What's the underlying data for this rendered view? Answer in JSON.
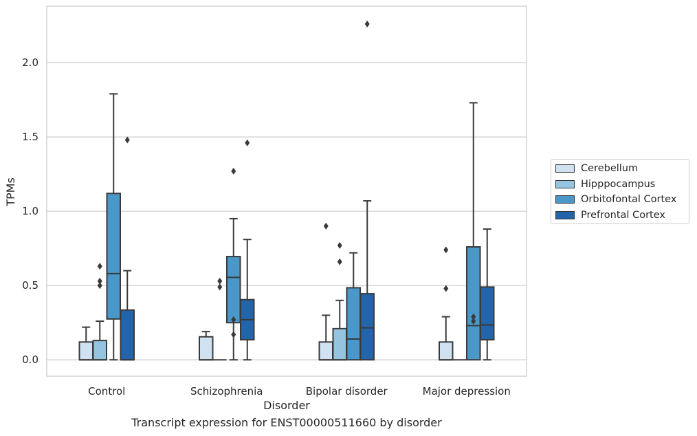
{
  "chart_data": {
    "type": "box",
    "title": "",
    "xlabel": "Disorder",
    "ylabel": "TPMs",
    "caption": "Transcript expression for ENST00000511660 by disorder",
    "ylim": [
      -0.11,
      2.38
    ],
    "yticks": [
      "0.0",
      "0.5",
      "1.0",
      "1.5",
      "2.0"
    ],
    "ytick_values": [
      0,
      0.5,
      1.0,
      1.5,
      2.0
    ],
    "grid": "horizontal",
    "legend_position": "right",
    "categories": [
      "Control",
      "Schizophrenia",
      "Bipolar disorder",
      "Major depression"
    ],
    "series": [
      {
        "name": "Cerebellum",
        "color": "#d0e1f2",
        "boxes": [
          {
            "whisker_low": 0,
            "q1": 0,
            "median": 0,
            "q3": 0.12,
            "whisker_high": 0.22,
            "fliers": []
          },
          {
            "whisker_low": 0,
            "q1": 0,
            "median": 0,
            "q3": 0.155,
            "whisker_high": 0.19,
            "fliers": []
          },
          {
            "whisker_low": 0,
            "q1": 0,
            "median": 0,
            "q3": 0.12,
            "whisker_high": 0.3,
            "fliers": [
              0.9
            ]
          },
          {
            "whisker_low": 0,
            "q1": 0,
            "median": 0,
            "q3": 0.12,
            "whisker_high": 0.29,
            "fliers": [
              0.74,
              0.48
            ]
          }
        ]
      },
      {
        "name": "Hipppocampus",
        "color": "#94c4df",
        "boxes": [
          {
            "whisker_low": 0,
            "q1": 0,
            "median": 0,
            "q3": 0.13,
            "whisker_high": 0.26,
            "fliers": [
              0.63,
              0.53,
              0.5
            ]
          },
          {
            "whisker_low": 0,
            "q1": 0,
            "median": 0,
            "q3": 0,
            "whisker_high": 0,
            "fliers": [
              0.53,
              0.49
            ]
          },
          {
            "whisker_low": 0,
            "q1": 0,
            "median": 0,
            "q3": 0.21,
            "whisker_high": 0.4,
            "fliers": [
              0.77,
              0.66
            ]
          },
          {
            "whisker_low": 0,
            "q1": 0,
            "median": 0,
            "q3": 0,
            "whisker_high": 0,
            "fliers": []
          }
        ]
      },
      {
        "name": "Orbitofontal Cortex",
        "color": "#4a98c9",
        "boxes": [
          {
            "whisker_low": 0,
            "q1": 0.275,
            "median": 0.58,
            "q3": 1.12,
            "whisker_high": 1.79,
            "fliers": []
          },
          {
            "whisker_low": 0,
            "q1": 0.25,
            "median": 0.555,
            "q3": 0.695,
            "whisker_high": 0.95,
            "fliers": [
              1.27,
              0.27,
              0.17
            ]
          },
          {
            "whisker_low": 0,
            "q1": 0,
            "median": 0.14,
            "q3": 0.485,
            "whisker_high": 0.72,
            "fliers": []
          },
          {
            "whisker_low": 0,
            "q1": 0,
            "median": 0.23,
            "q3": 0.76,
            "whisker_high": 1.73,
            "fliers": [
              0.29,
              0.26
            ]
          }
        ]
      },
      {
        "name": "Prefrontal Cortex",
        "color": "#2464a8",
        "boxes": [
          {
            "whisker_low": 0,
            "q1": 0,
            "median": 0,
            "q3": 0.335,
            "whisker_high": 0.6,
            "fliers": [
              1.48
            ]
          },
          {
            "whisker_low": 0,
            "q1": 0.135,
            "median": 0.27,
            "q3": 0.405,
            "whisker_high": 0.81,
            "fliers": [
              1.46
            ]
          },
          {
            "whisker_low": 0,
            "q1": 0,
            "median": 0.215,
            "q3": 0.445,
            "whisker_high": 1.07,
            "fliers": [
              2.26
            ]
          },
          {
            "whisker_low": 0,
            "q1": 0.135,
            "median": 0.235,
            "q3": 0.49,
            "whisker_high": 0.88,
            "fliers": []
          }
        ]
      }
    ]
  }
}
